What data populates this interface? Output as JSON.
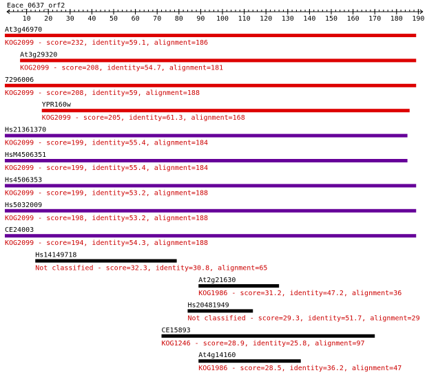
{
  "query": {
    "name": "Eace_0637_orf2"
  },
  "ruler": {
    "min": 1,
    "max": 192,
    "ticks": [
      10,
      20,
      30,
      40,
      50,
      60,
      70,
      80,
      90,
      100,
      110,
      120,
      130,
      140,
      150,
      160,
      170,
      180,
      190
    ]
  },
  "colors": {
    "kog_label": "#cc0000",
    "red_bar": "#dd0000",
    "purple_bar": "#660099",
    "black_bar": "#000000",
    "name_label": "#000000"
  },
  "hits": [
    {
      "name": "At3g46970",
      "start": 1,
      "end": 189,
      "bar_color": "red_bar",
      "desc": "KOG2099 - score=232, identity=59.1, alignment=186"
    },
    {
      "name": "At3g29320",
      "start": 8,
      "end": 189,
      "bar_color": "red_bar",
      "desc": "KOG2099 - score=208, identity=54.7, alignment=181"
    },
    {
      "name": "7296006",
      "start": 1,
      "end": 189,
      "bar_color": "red_bar",
      "desc": "KOG2099 - score=208, identity=59, alignment=188"
    },
    {
      "name": "YPR160w",
      "start": 18,
      "end": 186,
      "bar_color": "red_bar",
      "desc": "KOG2099 - score=205, identity=61.3, alignment=168"
    },
    {
      "name": "Hs21361370",
      "start": 1,
      "end": 185,
      "bar_color": "purple_bar",
      "desc": "KOG2099 - score=199, identity=55.4, alignment=184"
    },
    {
      "name": "HsM4506351",
      "start": 1,
      "end": 185,
      "bar_color": "purple_bar",
      "desc": "KOG2099 - score=199, identity=55.4, alignment=184"
    },
    {
      "name": "Hs4506353",
      "start": 1,
      "end": 189,
      "bar_color": "purple_bar",
      "desc": "KOG2099 - score=199, identity=53.2, alignment=188"
    },
    {
      "name": "Hs5032009",
      "start": 1,
      "end": 189,
      "bar_color": "purple_bar",
      "desc": "KOG2099 - score=198, identity=53.2, alignment=188"
    },
    {
      "name": "CE24003",
      "start": 1,
      "end": 189,
      "bar_color": "purple_bar",
      "desc": "KOG2099 - score=194, identity=54.3, alignment=188"
    },
    {
      "name": "Hs14149718",
      "start": 15,
      "end": 79,
      "bar_color": "black_bar",
      "desc": "Not classified - score=32.3, identity=30.8, alignment=65"
    },
    {
      "name": "At2g21630",
      "start": 90,
      "end": 126,
      "bar_color": "black_bar",
      "desc": "KOG1986 - score=31.2, identity=47.2, alignment=36"
    },
    {
      "name": "Hs20481949",
      "start": 85,
      "end": 114,
      "bar_color": "black_bar",
      "desc": "Not classified - score=29.3, identity=51.7, alignment=29"
    },
    {
      "name": "CE15893",
      "start": 73,
      "end": 170,
      "bar_color": "black_bar",
      "desc": "KOG1246 - score=28.9, identity=25.8, alignment=97"
    },
    {
      "name": "At4g14160",
      "start": 90,
      "end": 136,
      "bar_color": "black_bar",
      "desc": "KOG1986 - score=28.5, identity=36.2, alignment=47"
    }
  ]
}
